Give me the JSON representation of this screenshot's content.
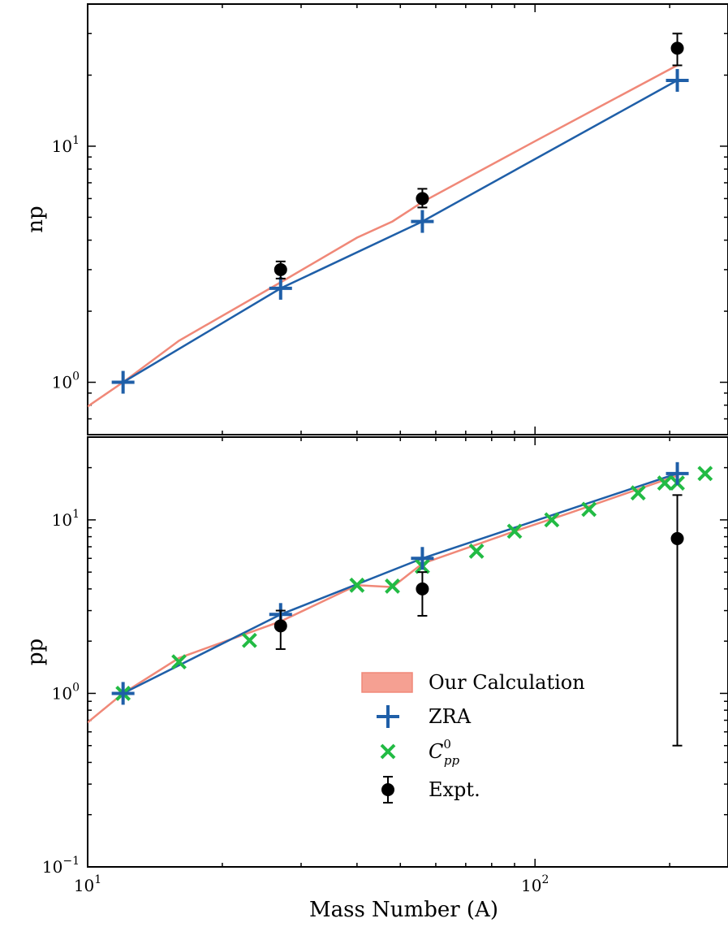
{
  "chart_data": [
    {
      "type": "line",
      "panel": "top",
      "ylabel": "np",
      "xlabel": "",
      "xscale": "log",
      "yscale": "log",
      "xlim": [
        10,
        270
      ],
      "ylim": [
        0.6,
        40
      ],
      "yticks": [
        {
          "value": 1,
          "mantissa": "10",
          "exponent": "0"
        },
        {
          "value": 10,
          "mantissa": "10",
          "exponent": "1"
        }
      ],
      "grid": false,
      "series": [
        {
          "key": "calc",
          "color": "#f08878",
          "points": [
            [
              10,
              0.79
            ],
            [
              12,
              1.0
            ],
            [
              16,
              1.5
            ],
            [
              27,
              2.65
            ],
            [
              40,
              4.1
            ],
            [
              48,
              4.8
            ],
            [
              56,
              5.8
            ],
            [
              100,
              10.5
            ],
            [
              208,
              22
            ]
          ]
        },
        {
          "key": "zra",
          "color": "#1f5fa8",
          "marker": "plus",
          "points": [
            [
              12,
              1.0
            ],
            [
              27,
              2.5
            ],
            [
              56,
              4.8
            ],
            [
              208,
              19
            ]
          ]
        },
        {
          "key": "expt",
          "color": "#000000",
          "marker": "circle",
          "points": [
            [
              27,
              3.0,
              2.75,
              3.25
            ],
            [
              56,
              6.0,
              5.5,
              6.6
            ],
            [
              208,
              26,
              22,
              30
            ]
          ]
        }
      ]
    },
    {
      "type": "line",
      "panel": "bottom",
      "ylabel": "pp",
      "xlabel": "Mass Number (A)",
      "xscale": "log",
      "yscale": "log",
      "xlim": [
        10,
        270
      ],
      "ylim": [
        0.1,
        30
      ],
      "xticks": [
        {
          "value": 10,
          "mantissa": "10",
          "exponent": "1"
        },
        {
          "value": 100,
          "mantissa": "10",
          "exponent": "2"
        }
      ],
      "yticks": [
        {
          "value": 0.1,
          "mantissa": "10",
          "exponent": "−1"
        },
        {
          "value": 1,
          "mantissa": "10",
          "exponent": "0"
        },
        {
          "value": 10,
          "mantissa": "10",
          "exponent": "1"
        }
      ],
      "grid": false,
      "legend_position": "lower center",
      "series": [
        {
          "key": "calc",
          "color": "#f08878",
          "points": [
            [
              10,
              0.68
            ],
            [
              12,
              1.0
            ],
            [
              16,
              1.6
            ],
            [
              27,
              2.6
            ],
            [
              40,
              4.2
            ],
            [
              48,
              4.1
            ],
            [
              56,
              5.6
            ],
            [
              90,
              8.6
            ],
            [
              120,
              11
            ],
            [
              208,
              18
            ]
          ]
        },
        {
          "key": "zra",
          "color": "#1f5fa8",
          "marker": "plus",
          "points": [
            [
              12,
              1.0
            ],
            [
              27,
              2.85
            ],
            [
              56,
              6.0
            ],
            [
              208,
              18.5
            ]
          ]
        },
        {
          "key": "cpp",
          "color": "#22bb44",
          "marker": "x",
          "points": [
            [
              12,
              1.0
            ],
            [
              16,
              1.52
            ],
            [
              23,
              2.02
            ],
            [
              40,
              4.2
            ],
            [
              48,
              4.15
            ],
            [
              56,
              5.4
            ],
            [
              74,
              6.6
            ],
            [
              90,
              8.6
            ],
            [
              109,
              10
            ],
            [
              132,
              11.5
            ],
            [
              170,
              14.3
            ],
            [
              195,
              16.3
            ],
            [
              208,
              16.3
            ],
            [
              240,
              18.5
            ]
          ]
        },
        {
          "key": "expt",
          "color": "#000000",
          "marker": "circle",
          "points": [
            [
              27,
              2.45,
              1.8,
              3.0
            ],
            [
              56,
              4.0,
              2.8,
              5.0
            ],
            [
              208,
              7.8,
              0.5,
              13.9
            ]
          ]
        }
      ]
    }
  ],
  "legend": {
    "items": [
      {
        "key": "calc",
        "label": "Our Calculation",
        "swatch": "patch"
      },
      {
        "key": "zra",
        "label": "ZRA",
        "swatch": "plus"
      },
      {
        "key": "cpp",
        "label": "C",
        "sup": "0",
        "sub": "pp",
        "swatch": "x"
      },
      {
        "key": "expt",
        "label": "Expt.",
        "swatch": "errorbar"
      }
    ]
  },
  "colors": {
    "calc": "#f08878",
    "calc_fill": "#f5a092",
    "zra": "#1f5fa8",
    "cpp": "#22bb44",
    "expt": "#000000"
  }
}
